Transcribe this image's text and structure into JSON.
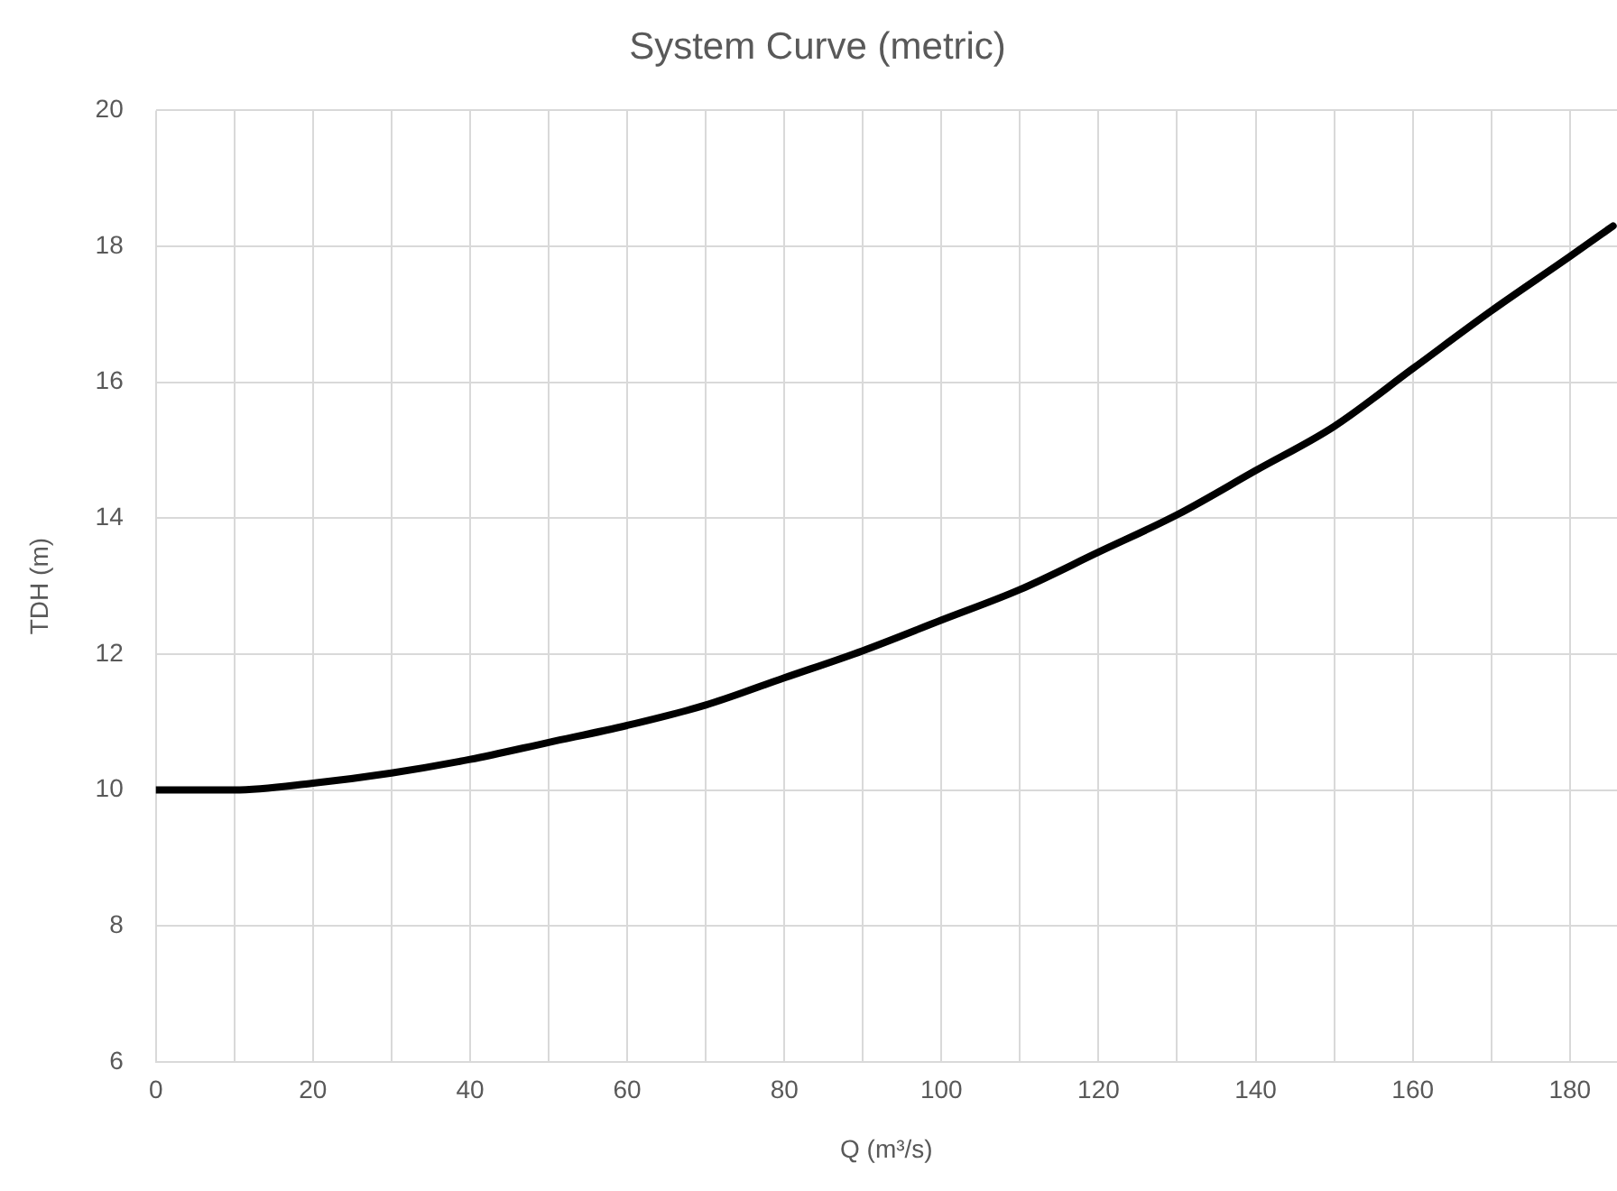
{
  "chart_data": {
    "type": "line",
    "title": "System Curve (metric)",
    "xlabel": "Q (m³/s)",
    "ylabel": "TDH (m)",
    "x": [
      0,
      10,
      20,
      30,
      40,
      50,
      60,
      70,
      80,
      90,
      100,
      110,
      120,
      130,
      140,
      150,
      160,
      170,
      180,
      185.5
    ],
    "series": [
      {
        "color": "#000000",
        "values": [
          10.0,
          10.0,
          10.1,
          10.25,
          10.45,
          10.7,
          10.95,
          11.25,
          11.65,
          12.05,
          12.5,
          12.95,
          13.5,
          14.05,
          14.7,
          15.35,
          16.2,
          17.05,
          17.85,
          18.3
        ]
      }
    ],
    "xlim": [
      0,
      186
    ],
    "xticks": [
      0,
      {
        "value": 10,
        "label": null
      },
      20,
      {
        "value": 30,
        "label": null
      },
      40,
      {
        "value": 50,
        "label": null
      },
      60,
      {
        "value": 70,
        "label": null
      },
      80,
      {
        "value": 90,
        "label": null
      },
      100,
      {
        "value": 110,
        "label": null
      },
      120,
      {
        "value": 130,
        "label": null
      },
      140,
      {
        "value": 150,
        "label": null
      },
      160,
      {
        "value": 170,
        "label": null
      },
      180
    ],
    "ylim": [
      6,
      20
    ],
    "yticks": [
      6,
      8,
      10,
      12,
      14,
      16,
      18,
      20
    ],
    "grid": true,
    "legend": false,
    "marker": "none",
    "line_style": "solid"
  }
}
